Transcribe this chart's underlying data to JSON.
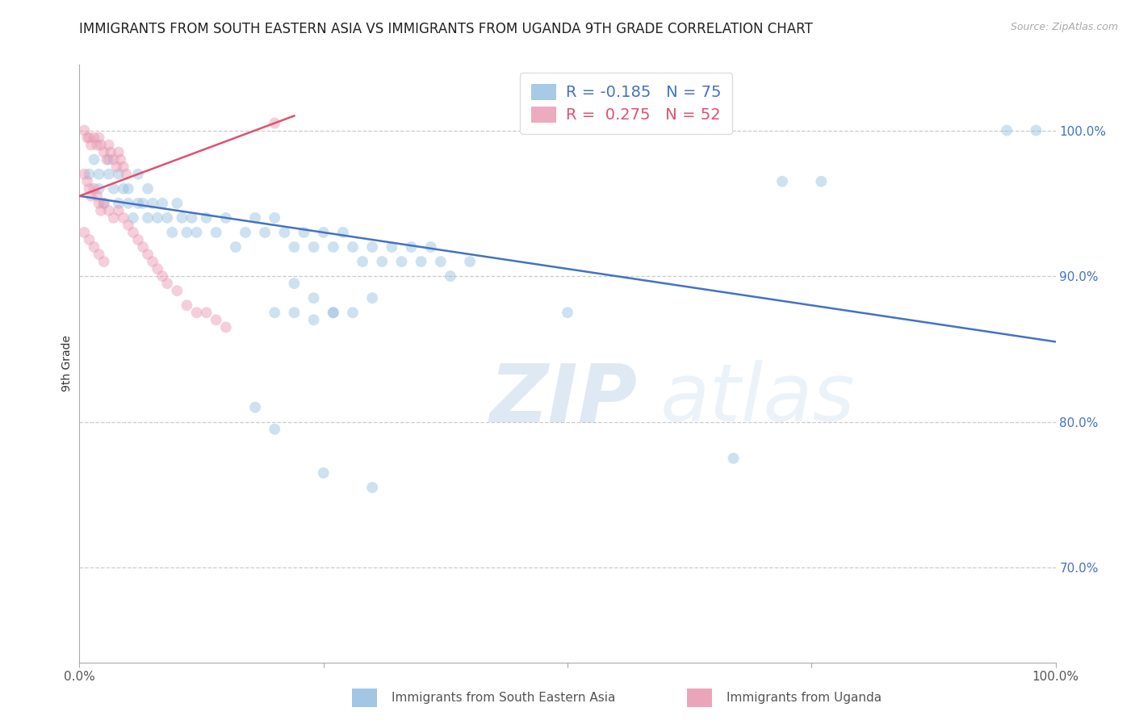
{
  "title": "IMMIGRANTS FROM SOUTH EASTERN ASIA VS IMMIGRANTS FROM UGANDA 9TH GRADE CORRELATION CHART",
  "source": "Source: ZipAtlas.com",
  "ylabel": "9th Grade",
  "legend_blue_r": "-0.185",
  "legend_blue_n": "75",
  "legend_pink_r": "0.275",
  "legend_pink_n": "52",
  "legend_label_blue": "Immigrants from South Eastern Asia",
  "legend_label_pink": "Immigrants from Uganda",
  "blue_color": "#92bde0",
  "pink_color": "#e896b0",
  "blue_line_color": "#4472c4",
  "pink_line_color": "#e05070",
  "ytick_labels": [
    "100.0%",
    "90.0%",
    "80.0%",
    "70.0%"
  ],
  "ytick_values": [
    1.0,
    0.9,
    0.8,
    0.7
  ],
  "xlim": [
    0.0,
    1.0
  ],
  "ylim": [
    0.635,
    1.045
  ],
  "blue_scatter_x": [
    0.01,
    0.015,
    0.02,
    0.02,
    0.025,
    0.03,
    0.03,
    0.035,
    0.04,
    0.04,
    0.045,
    0.05,
    0.05,
    0.055,
    0.06,
    0.06,
    0.065,
    0.07,
    0.07,
    0.075,
    0.08,
    0.085,
    0.09,
    0.095,
    0.1,
    0.105,
    0.11,
    0.115,
    0.12,
    0.13,
    0.14,
    0.15,
    0.16,
    0.17,
    0.18,
    0.19,
    0.2,
    0.21,
    0.22,
    0.23,
    0.24,
    0.25,
    0.26,
    0.27,
    0.28,
    0.29,
    0.3,
    0.31,
    0.32,
    0.33,
    0.34,
    0.35,
    0.36,
    0.37,
    0.38,
    0.4,
    0.5,
    0.22,
    0.24,
    0.26,
    0.28,
    0.3,
    0.2,
    0.22,
    0.24,
    0.26,
    0.72,
    0.76,
    0.95,
    0.98,
    0.18,
    0.2,
    0.25,
    0.3,
    0.67
  ],
  "blue_scatter_y": [
    0.97,
    0.98,
    0.96,
    0.97,
    0.95,
    0.97,
    0.98,
    0.96,
    0.95,
    0.97,
    0.96,
    0.95,
    0.96,
    0.94,
    0.95,
    0.97,
    0.95,
    0.96,
    0.94,
    0.95,
    0.94,
    0.95,
    0.94,
    0.93,
    0.95,
    0.94,
    0.93,
    0.94,
    0.93,
    0.94,
    0.93,
    0.94,
    0.92,
    0.93,
    0.94,
    0.93,
    0.94,
    0.93,
    0.92,
    0.93,
    0.92,
    0.93,
    0.92,
    0.93,
    0.92,
    0.91,
    0.92,
    0.91,
    0.92,
    0.91,
    0.92,
    0.91,
    0.92,
    0.91,
    0.9,
    0.91,
    0.875,
    0.895,
    0.885,
    0.875,
    0.875,
    0.885,
    0.875,
    0.875,
    0.87,
    0.875,
    0.965,
    0.965,
    1.0,
    1.0,
    0.81,
    0.795,
    0.765,
    0.755,
    0.775
  ],
  "pink_scatter_x": [
    0.005,
    0.008,
    0.01,
    0.012,
    0.015,
    0.018,
    0.02,
    0.022,
    0.025,
    0.028,
    0.03,
    0.032,
    0.035,
    0.038,
    0.04,
    0.042,
    0.045,
    0.048,
    0.005,
    0.008,
    0.01,
    0.012,
    0.015,
    0.018,
    0.02,
    0.022,
    0.025,
    0.03,
    0.035,
    0.04,
    0.045,
    0.05,
    0.055,
    0.06,
    0.065,
    0.07,
    0.075,
    0.08,
    0.085,
    0.09,
    0.1,
    0.11,
    0.12,
    0.13,
    0.14,
    0.15,
    0.005,
    0.01,
    0.015,
    0.02,
    0.025,
    0.2
  ],
  "pink_scatter_y": [
    1.0,
    0.995,
    0.995,
    0.99,
    0.995,
    0.99,
    0.995,
    0.99,
    0.985,
    0.98,
    0.99,
    0.985,
    0.98,
    0.975,
    0.985,
    0.98,
    0.975,
    0.97,
    0.97,
    0.965,
    0.96,
    0.955,
    0.96,
    0.955,
    0.95,
    0.945,
    0.95,
    0.945,
    0.94,
    0.945,
    0.94,
    0.935,
    0.93,
    0.925,
    0.92,
    0.915,
    0.91,
    0.905,
    0.9,
    0.895,
    0.89,
    0.88,
    0.875,
    0.875,
    0.87,
    0.865,
    0.93,
    0.925,
    0.92,
    0.915,
    0.91,
    1.005
  ],
  "blue_line_x": [
    0.0,
    1.0
  ],
  "blue_line_y": [
    0.955,
    0.855
  ],
  "pink_line_x": [
    0.0,
    0.22
  ],
  "pink_line_y": [
    0.955,
    1.01
  ],
  "watermark_zip": "ZIP",
  "watermark_atlas": "atlas",
  "background_color": "#ffffff",
  "grid_color": "#cccccc",
  "title_fontsize": 12,
  "axis_label_fontsize": 10,
  "tick_fontsize": 11,
  "scatter_size": 100,
  "scatter_alpha": 0.45,
  "line_width": 1.8
}
